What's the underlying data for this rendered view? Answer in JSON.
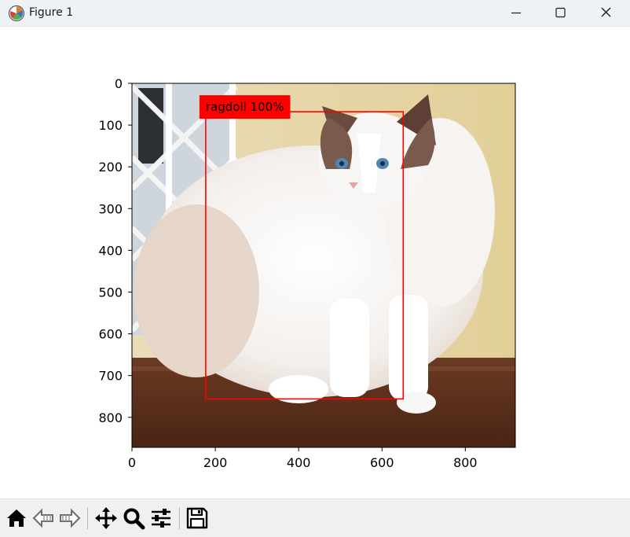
{
  "window": {
    "title": "Figure 1",
    "controls": [
      "minimize",
      "maximize",
      "close"
    ]
  },
  "plot": {
    "image_description": "photo of ragdoll cat standing on wooden table",
    "x_ticks": [
      "0",
      "200",
      "400",
      "600",
      "800"
    ],
    "y_ticks": [
      "0",
      "100",
      "200",
      "300",
      "400",
      "500",
      "600",
      "700",
      "800"
    ],
    "xlim": [
      0,
      920
    ],
    "ylim": [
      872,
      0
    ],
    "detection": {
      "label": "ragdoll 100%",
      "box_color": "#ff0000",
      "label_bg": "#ff0000",
      "x1": 177,
      "y1": 68,
      "x2": 651,
      "y2": 756
    }
  },
  "toolbar": {
    "buttons": [
      "home-icon",
      "back-icon",
      "forward-icon",
      "pan-icon",
      "zoom-icon",
      "configure-subplots-icon",
      "save-icon"
    ]
  }
}
